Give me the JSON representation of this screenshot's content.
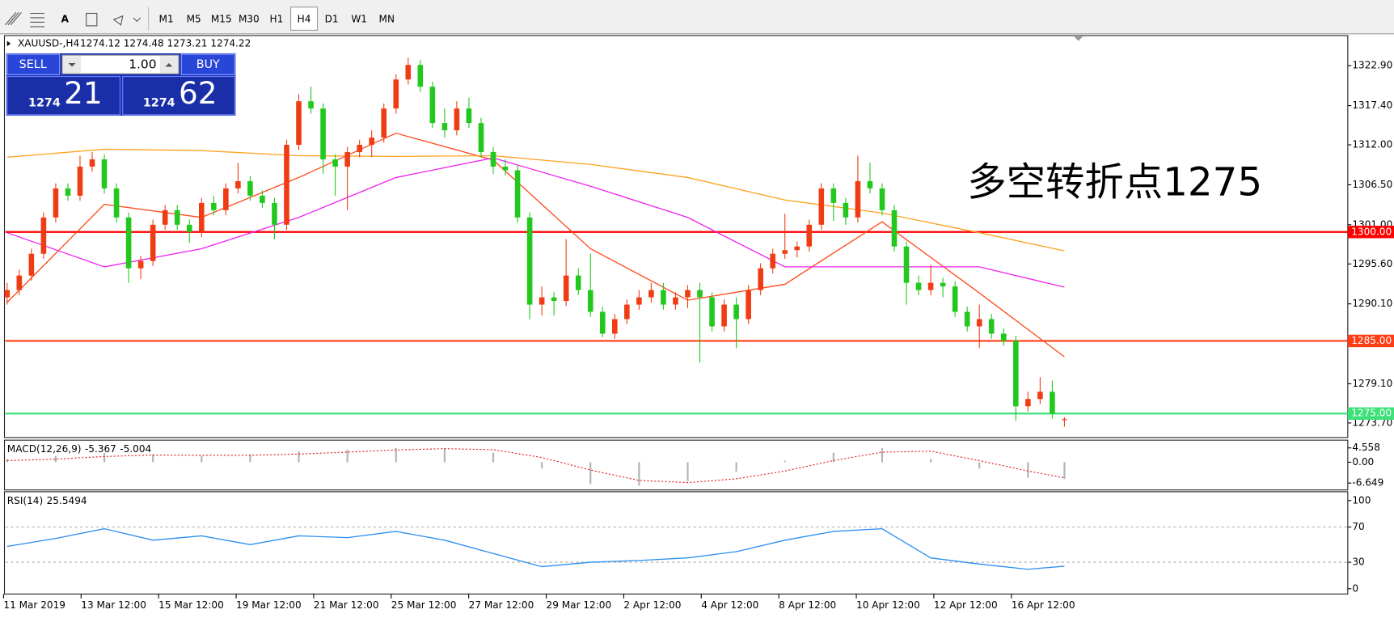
{
  "toolbar": {
    "font_tool": "A",
    "timeframes": [
      "M1",
      "M5",
      "M15",
      "M30",
      "H1",
      "H4",
      "D1",
      "W1",
      "MN"
    ],
    "active": 5
  },
  "header": {
    "symbol": "XAUUSD-,H4",
    "ohlc_text": "1274.12 1274.48 1273.21 1274.22"
  },
  "trade": {
    "sell": "SELL",
    "buy": "BUY",
    "lots": "1.00",
    "bid_big": "1274",
    "bid_small": "21",
    "ask_big": "1274",
    "ask_small": "62"
  },
  "annotation": {
    "text": "多空转折点1275",
    "color": "#ff2a1a"
  },
  "x_labels": [
    "11 Mar 2019",
    "13 Mar 12:00",
    "15 Mar 12:00",
    "19 Mar 12:00",
    "21 Mar 12:00",
    "25 Mar 12:00",
    "27 Mar 12:00",
    "29 Mar 12:00",
    "2 Apr 12:00",
    "4 Apr 12:00",
    "8 Apr 12:00",
    "10 Apr 12:00",
    "12 Apr 12:00",
    "16 Apr 12:00"
  ],
  "chart_data": [
    {
      "type": "candlestick",
      "up_color": "#f03c14",
      "down_color": "#22c81e",
      "ylim": [
        1271.7,
        1326.8
      ],
      "yticks": [
        {
          "value": 1322.9,
          "label": "1322.90"
        },
        {
          "value": 1317.4,
          "label": "1317.40"
        },
        {
          "value": 1312,
          "label": "1312.00"
        },
        {
          "value": 1306.5,
          "label": "1306.50"
        },
        {
          "value": 1301,
          "label": "1301.00"
        },
        {
          "value": 1295.6,
          "label": "1295.60"
        },
        {
          "value": 1290.1,
          "label": "1290.10"
        },
        {
          "value": 1279.1,
          "label": "1279.10"
        },
        {
          "value": 1273.7,
          "label": "1273.70"
        }
      ],
      "hlines": [
        {
          "value": 1300,
          "label": "1300.00",
          "color": "#ff0000"
        },
        {
          "value": 1285,
          "label": "1285.00",
          "color": "#ff3c14"
        },
        {
          "value": 1275,
          "label": "1275.00",
          "color": "#3ee07a"
        }
      ],
      "ohlc": [
        [
          1291,
          1293,
          1290,
          1292
        ],
        [
          1292,
          1294.8,
          1291.3,
          1294
        ],
        [
          1294,
          1297.7,
          1293.3,
          1297
        ],
        [
          1297,
          1302.7,
          1296.3,
          1302
        ],
        [
          1302,
          1306.7,
          1301.3,
          1306
        ],
        [
          1306,
          1306.7,
          1304.3,
          1305
        ],
        [
          1305,
          1310.5,
          1304.3,
          1309
        ],
        [
          1309,
          1311,
          1308.3,
          1310
        ],
        [
          1310,
          1310.7,
          1305.3,
          1306
        ],
        [
          1306,
          1306.7,
          1301.3,
          1302
        ],
        [
          1302,
          1302.7,
          1293,
          1295
        ],
        [
          1295,
          1296.7,
          1293.5,
          1296
        ],
        [
          1296,
          1301.7,
          1295.3,
          1301
        ],
        [
          1301,
          1303.7,
          1300.3,
          1303
        ],
        [
          1303,
          1303.7,
          1300.3,
          1301
        ],
        [
          1301,
          1301.7,
          1298.5,
          1300
        ],
        [
          1300,
          1304.7,
          1299.3,
          1304
        ],
        [
          1304,
          1305,
          1302.3,
          1303
        ],
        [
          1303,
          1306.7,
          1302.3,
          1306
        ],
        [
          1306,
          1309.5,
          1305.3,
          1307
        ],
        [
          1307,
          1307.7,
          1304.3,
          1305
        ],
        [
          1305,
          1305.7,
          1303.3,
          1304
        ],
        [
          1304,
          1304.7,
          1299,
          1301
        ],
        [
          1301,
          1312.7,
          1300.3,
          1312
        ],
        [
          1312,
          1319,
          1311.3,
          1318
        ],
        [
          1318,
          1320,
          1316.3,
          1317
        ],
        [
          1317,
          1317.7,
          1308,
          1310
        ],
        [
          1310,
          1310.7,
          1305,
          1309
        ],
        [
          1309,
          1311.7,
          1303,
          1311
        ],
        [
          1311,
          1312.7,
          1310.3,
          1312
        ],
        [
          1312,
          1314,
          1310.3,
          1313
        ],
        [
          1313,
          1317.7,
          1312.3,
          1317
        ],
        [
          1317,
          1321.7,
          1316.3,
          1321
        ],
        [
          1321,
          1324,
          1320.3,
          1323
        ],
        [
          1323,
          1323.7,
          1319.3,
          1320
        ],
        [
          1320,
          1320.7,
          1314.3,
          1315
        ],
        [
          1315,
          1317,
          1313,
          1314
        ],
        [
          1314,
          1318,
          1313.3,
          1317
        ],
        [
          1317,
          1318.5,
          1314.3,
          1315
        ],
        [
          1315,
          1315.7,
          1310.3,
          1311
        ],
        [
          1311,
          1311.7,
          1308,
          1309
        ],
        [
          1309,
          1310,
          1307.8,
          1308.5
        ],
        [
          1308.5,
          1309.2,
          1301.3,
          1302
        ],
        [
          1302,
          1302.7,
          1288,
          1290
        ],
        [
          1290,
          1292.5,
          1288.5,
          1291
        ],
        [
          1291,
          1291.7,
          1288.5,
          1290.5
        ],
        [
          1290.5,
          1299,
          1289.8,
          1294
        ],
        [
          1294,
          1295,
          1291.3,
          1292
        ],
        [
          1292,
          1297,
          1288.3,
          1289
        ],
        [
          1289,
          1289.7,
          1285.5,
          1286
        ],
        [
          1286,
          1288.7,
          1285.3,
          1288
        ],
        [
          1288,
          1290.7,
          1287.3,
          1290
        ],
        [
          1290,
          1292,
          1289.3,
          1291
        ],
        [
          1291,
          1293,
          1290.3,
          1292
        ],
        [
          1292,
          1293,
          1289.3,
          1290
        ],
        [
          1290,
          1291.7,
          1289.3,
          1291
        ],
        [
          1291,
          1292.7,
          1289.5,
          1292
        ],
        [
          1292,
          1293,
          1282,
          1291
        ],
        [
          1291,
          1291.7,
          1286.3,
          1287
        ],
        [
          1287,
          1290.7,
          1286.3,
          1290
        ],
        [
          1290,
          1291,
          1284,
          1288
        ],
        [
          1288,
          1292.7,
          1287.3,
          1292
        ],
        [
          1292,
          1295.7,
          1291.3,
          1295
        ],
        [
          1295,
          1297.7,
          1294.3,
          1297
        ],
        [
          1297,
          1302.5,
          1296.3,
          1297.5
        ],
        [
          1297.5,
          1298.7,
          1296.5,
          1298
        ],
        [
          1298,
          1301.7,
          1297.3,
          1301
        ],
        [
          1301,
          1306.7,
          1300.3,
          1306
        ],
        [
          1306,
          1306.7,
          1301.5,
          1304
        ],
        [
          1304,
          1304.7,
          1301,
          1302
        ],
        [
          1302,
          1310.5,
          1301.3,
          1307
        ],
        [
          1307,
          1309.5,
          1305.3,
          1306
        ],
        [
          1306,
          1306.7,
          1302.3,
          1303
        ],
        [
          1303,
          1303.7,
          1297.3,
          1298
        ],
        [
          1298,
          1298.7,
          1290,
          1293
        ],
        [
          1293,
          1294,
          1291.3,
          1292
        ],
        [
          1292,
          1295.5,
          1291.3,
          1293
        ],
        [
          1293,
          1293.7,
          1291,
          1292.5
        ],
        [
          1292.5,
          1293.2,
          1288.3,
          1289
        ],
        [
          1289,
          1289.7,
          1286.3,
          1287
        ],
        [
          1287,
          1290,
          1284,
          1288
        ],
        [
          1288,
          1288.7,
          1285.3,
          1286
        ],
        [
          1286,
          1286.7,
          1284.3,
          1285
        ],
        [
          1285,
          1285.7,
          1274,
          1276
        ],
        [
          1276,
          1278,
          1275.3,
          1277
        ],
        [
          1277,
          1280,
          1276.3,
          1278
        ],
        [
          1278,
          1279.5,
          1274.3,
          1275
        ],
        [
          1274.12,
          1274.48,
          1273.21,
          1274.22
        ]
      ],
      "series": [
        {
          "color": "#ff4a1a",
          "x": [
            0,
            8,
            16,
            24,
            32,
            40,
            48,
            56,
            64,
            72,
            80,
            87
          ],
          "values": [
            1290.3,
            1303.8,
            1302,
            1307.5,
            1313.6,
            1309.9,
            1297.7,
            1290.6,
            1292.8,
            1301.4,
            1291.6,
            1282.8
          ]
        },
        {
          "color": "#ee22ee",
          "x": [
            0,
            8,
            16,
            24,
            32,
            40,
            48,
            56,
            64,
            72,
            80,
            87
          ],
          "values": [
            1299.9,
            1295.2,
            1297.7,
            1302,
            1307.5,
            1310.2,
            1306.3,
            1302,
            1295.2,
            1295.2,
            1295.2,
            1292.4
          ]
        },
        {
          "color": "#ffa020",
          "x": [
            0,
            8,
            16,
            24,
            32,
            40,
            48,
            56,
            64,
            72,
            80,
            87
          ],
          "values": [
            1310.3,
            1311.4,
            1311.2,
            1310.5,
            1310.4,
            1310.5,
            1309.3,
            1307.5,
            1304.4,
            1302.6,
            1299.9,
            1297.4
          ]
        }
      ]
    },
    {
      "type": "macd",
      "label": "MACD(12,26,9)",
      "main": -5.367,
      "signal_last": -5.004,
      "ylim": [
        -8.56,
        6.74
      ],
      "yticks": [
        4.558,
        {
          "value": 0,
          "label": "0.00"
        },
        -6.649
      ],
      "x": [
        0,
        4,
        8,
        12,
        16,
        20,
        24,
        28,
        32,
        36,
        40,
        44,
        48,
        52,
        56,
        60,
        64,
        68,
        72,
        76,
        80,
        84,
        87
      ],
      "series": [
        {
          "color": "#b4b4b4",
          "values": [
            1,
            2,
            3,
            2.5,
            2,
            2.5,
            3.5,
            4,
            4.5,
            4.5,
            3,
            -2,
            -7,
            -7.5,
            -6,
            -3,
            0.5,
            3,
            4.5,
            1,
            -2,
            -5,
            -5.367
          ]
        },
        {
          "color": "#e02020",
          "values": [
            0.5,
            1,
            1.8,
            2.3,
            2.2,
            2.2,
            2.6,
            3.2,
            3.9,
            4.3,
            4,
            1.5,
            -2.5,
            -5.8,
            -6.5,
            -5.3,
            -2.8,
            0.5,
            3.2,
            3.5,
            0.5,
            -2.8,
            -5.004
          ]
        }
      ]
    },
    {
      "type": "line",
      "label": "RSI(14)",
      "last": 25.5494,
      "color": "#2a8ef0",
      "ylim": [
        -5,
        109
      ],
      "yticks": [
        100,
        70,
        30,
        0
      ],
      "x": [
        0,
        4,
        8,
        12,
        16,
        20,
        24,
        28,
        32,
        36,
        40,
        44,
        48,
        52,
        56,
        60,
        64,
        68,
        72,
        76,
        80,
        84,
        87
      ],
      "values": [
        48,
        57,
        68,
        55,
        60,
        50,
        60,
        58,
        65,
        55,
        40,
        25,
        30,
        32,
        35,
        42,
        55,
        65,
        68,
        35,
        28,
        22,
        25.5494
      ]
    }
  ]
}
